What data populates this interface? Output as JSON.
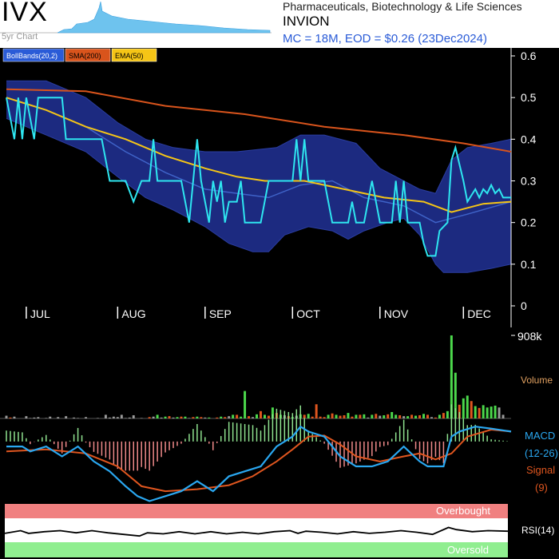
{
  "header": {
    "ticker": "IVX",
    "spark_label": "5yr Chart",
    "sector": "Pharmaceuticals, Biotechnology & Life Sciences",
    "company": "INVION",
    "market_info": "MC = 18M, EOD = $0.26 (23Dec2024)"
  },
  "colors": {
    "background": "#000000",
    "band_fill": "#1c2a80",
    "price": "#2ee6f0",
    "sma200": "#d9541c",
    "ema50": "#f5c516",
    "bb_mid": "#3f63c8",
    "macd": "#2aa7f0",
    "signal": "#e0561f",
    "vol_up": "#4cd94c",
    "vol_down": "#e0561f",
    "vol_flat": "#9a9a9a",
    "overbought": "#f08080",
    "oversold": "#90ee90"
  },
  "chart_data": [
    {
      "type": "line",
      "legend": [
        "BollBands(20,2)",
        "SMA(200)",
        "EMA(50)"
      ],
      "ylim": [
        0,
        0.6
      ],
      "yticks": [
        "0.6",
        "0.5",
        "0.4",
        "0.3",
        "0.2",
        "0.1",
        "0"
      ],
      "ytick_values": [
        0.6,
        0.5,
        0.4,
        0.3,
        0.2,
        0.1,
        0
      ],
      "months": [
        "JUL",
        "AUG",
        "SEP",
        "OCT",
        "NOV",
        "DEC"
      ],
      "month_start_index": [
        5,
        28,
        50,
        72,
        94,
        115
      ],
      "n_days": 128,
      "price_points": [
        [
          0,
          0.5
        ],
        [
          2,
          0.4
        ],
        [
          3,
          0.5
        ],
        [
          4,
          0.4
        ],
        [
          5,
          0.5
        ],
        [
          7,
          0.4
        ],
        [
          8,
          0.5
        ],
        [
          14,
          0.5
        ],
        [
          15,
          0.4
        ],
        [
          24,
          0.4
        ],
        [
          26,
          0.3
        ],
        [
          30,
          0.3
        ],
        [
          32,
          0.25
        ],
        [
          34,
          0.3
        ],
        [
          36,
          0.3
        ],
        [
          37,
          0.4
        ],
        [
          38,
          0.3
        ],
        [
          44,
          0.3
        ],
        [
          46,
          0.2
        ],
        [
          47,
          0.3
        ],
        [
          48,
          0.4
        ],
        [
          49,
          0.3
        ],
        [
          51,
          0.2
        ],
        [
          52,
          0.3
        ],
        [
          53,
          0.25
        ],
        [
          54,
          0.3
        ],
        [
          55,
          0.2
        ],
        [
          56,
          0.25
        ],
        [
          58,
          0.25
        ],
        [
          59,
          0.3
        ],
        [
          60,
          0.2
        ],
        [
          64,
          0.2
        ],
        [
          66,
          0.3
        ],
        [
          72,
          0.3
        ],
        [
          73,
          0.4
        ],
        [
          74,
          0.3
        ],
        [
          75,
          0.4
        ],
        [
          76,
          0.3
        ],
        [
          80,
          0.3
        ],
        [
          82,
          0.2
        ],
        [
          86,
          0.2
        ],
        [
          87,
          0.25
        ],
        [
          88,
          0.2
        ],
        [
          90,
          0.2
        ],
        [
          92,
          0.3
        ],
        [
          94,
          0.2
        ],
        [
          97,
          0.2
        ],
        [
          98,
          0.3
        ],
        [
          99,
          0.2
        ],
        [
          100,
          0.3
        ],
        [
          101,
          0.2
        ],
        [
          104,
          0.2
        ],
        [
          105,
          0.15
        ],
        [
          106,
          0.12
        ],
        [
          108,
          0.12
        ],
        [
          109,
          0.18
        ],
        [
          111,
          0.2
        ],
        [
          112,
          0.35
        ],
        [
          113,
          0.38
        ],
        [
          115,
          0.3
        ],
        [
          116,
          0.25
        ],
        [
          118,
          0.28
        ],
        [
          119,
          0.26
        ],
        [
          120,
          0.28
        ],
        [
          121,
          0.27
        ],
        [
          122,
          0.29
        ],
        [
          123,
          0.27
        ],
        [
          124,
          0.28
        ],
        [
          125,
          0.26
        ],
        [
          127,
          0.26
        ]
      ],
      "sma200": [
        [
          0,
          0.52
        ],
        [
          20,
          0.515
        ],
        [
          40,
          0.48
        ],
        [
          60,
          0.46
        ],
        [
          80,
          0.43
        ],
        [
          100,
          0.41
        ],
        [
          115,
          0.39
        ],
        [
          127,
          0.37
        ]
      ],
      "ema50": [
        [
          0,
          0.5
        ],
        [
          10,
          0.47
        ],
        [
          20,
          0.43
        ],
        [
          30,
          0.4
        ],
        [
          40,
          0.36
        ],
        [
          50,
          0.33
        ],
        [
          58,
          0.31
        ],
        [
          65,
          0.3
        ],
        [
          75,
          0.3
        ],
        [
          85,
          0.28
        ],
        [
          95,
          0.26
        ],
        [
          105,
          0.25
        ],
        [
          112,
          0.225
        ],
        [
          120,
          0.245
        ],
        [
          127,
          0.25
        ]
      ],
      "bb_upper": [
        [
          0,
          0.54
        ],
        [
          10,
          0.54
        ],
        [
          20,
          0.5
        ],
        [
          28,
          0.44
        ],
        [
          35,
          0.4
        ],
        [
          42,
          0.38
        ],
        [
          50,
          0.37
        ],
        [
          58,
          0.37
        ],
        [
          68,
          0.38
        ],
        [
          74,
          0.41
        ],
        [
          80,
          0.41
        ],
        [
          88,
          0.39
        ],
        [
          94,
          0.33
        ],
        [
          100,
          0.3
        ],
        [
          104,
          0.28
        ],
        [
          108,
          0.27
        ],
        [
          112,
          0.35
        ],
        [
          116,
          0.38
        ],
        [
          122,
          0.39
        ],
        [
          127,
          0.4
        ]
      ],
      "bb_lower": [
        [
          0,
          0.45
        ],
        [
          10,
          0.41
        ],
        [
          20,
          0.37
        ],
        [
          28,
          0.31
        ],
        [
          35,
          0.26
        ],
        [
          42,
          0.23
        ],
        [
          50,
          0.19
        ],
        [
          56,
          0.15
        ],
        [
          62,
          0.13
        ],
        [
          66,
          0.13
        ],
        [
          70,
          0.17
        ],
        [
          76,
          0.19
        ],
        [
          82,
          0.18
        ],
        [
          86,
          0.16
        ],
        [
          90,
          0.18
        ],
        [
          96,
          0.2
        ],
        [
          100,
          0.21
        ],
        [
          104,
          0.17
        ],
        [
          108,
          0.1
        ],
        [
          110,
          0.08
        ],
        [
          116,
          0.08
        ],
        [
          122,
          0.09
        ],
        [
          127,
          0.1
        ]
      ],
      "bb_mid": [
        [
          0,
          0.5
        ],
        [
          10,
          0.47
        ],
        [
          20,
          0.43
        ],
        [
          30,
          0.37
        ],
        [
          40,
          0.32
        ],
        [
          50,
          0.28
        ],
        [
          58,
          0.27
        ],
        [
          66,
          0.26
        ],
        [
          74,
          0.29
        ],
        [
          82,
          0.3
        ],
        [
          90,
          0.26
        ],
        [
          100,
          0.24
        ],
        [
          108,
          0.2
        ],
        [
          116,
          0.22
        ],
        [
          127,
          0.25
        ]
      ]
    },
    {
      "type": "bar",
      "ylabel": "Volume",
      "ymax_label": "908k",
      "ylim": [
        0,
        908
      ],
      "values": [
        30,
        10,
        20,
        0,
        0,
        25,
        5,
        10,
        15,
        0,
        5,
        20,
        0,
        15,
        0,
        25,
        0,
        10,
        5,
        0,
        15,
        0,
        0,
        5,
        0,
        40,
        10,
        20,
        15,
        40,
        5,
        10,
        35,
        0,
        5,
        0,
        15,
        20,
        40,
        10,
        20,
        25,
        10,
        15,
        20,
        20,
        5,
        15,
        20,
        15,
        10,
        10,
        0,
        10,
        20,
        15,
        25,
        40,
        40,
        20,
        300,
        25,
        15,
        45,
        80,
        40,
        30,
        120,
        60,
        40,
        35,
        25,
        15,
        30,
        45,
        40,
        50,
        20,
        155,
        20,
        15,
        40,
        55,
        40,
        30,
        35,
        60,
        20,
        40,
        40,
        45,
        10,
        40,
        50,
        30,
        35,
        45,
        70,
        40,
        35,
        25,
        25,
        40,
        30,
        35,
        50,
        40,
        15,
        10,
        40,
        60,
        80,
        908,
        500,
        150,
        220,
        250,
        190,
        135,
        115,
        145,
        120,
        130,
        140,
        120,
        40
      ],
      "direction": [
        0,
        -1,
        0,
        0,
        0,
        0,
        0,
        0,
        0,
        0,
        0,
        0,
        0,
        0,
        0,
        0,
        0,
        0,
        0,
        0,
        0,
        0,
        0,
        0,
        0,
        0,
        0,
        0,
        0,
        0,
        0,
        0,
        0,
        0,
        0,
        0,
        -1,
        0,
        1,
        0,
        1,
        -1,
        0,
        1,
        -1,
        1,
        0,
        -1,
        1,
        -1,
        0,
        1,
        0,
        -1,
        1,
        -1,
        0,
        1,
        -1,
        1,
        1,
        -1,
        0,
        1,
        -1,
        1,
        -1,
        1,
        -1,
        1,
        0,
        -1,
        1,
        0,
        1,
        -1,
        1,
        -1,
        -1,
        -1,
        -1,
        1,
        -1,
        1,
        -1,
        -1,
        1,
        -1,
        1,
        -1,
        1,
        0,
        1,
        -1,
        0,
        1,
        -1,
        1,
        1,
        -1,
        0,
        1,
        -1,
        1,
        -1,
        1,
        -1,
        0,
        -1,
        1,
        -1,
        1,
        1,
        1,
        -1,
        1,
        1,
        -1,
        1,
        -1,
        1,
        1,
        1,
        1
      ]
    },
    {
      "type": "line",
      "title": "MACD",
      "series_names": [
        "MACD",
        "Signal"
      ],
      "labels": [
        "MACD",
        "(12-26)",
        "Signal",
        "(9)"
      ],
      "macd": [
        [
          0,
          -0.005
        ],
        [
          4,
          -0.005
        ],
        [
          6,
          -0.01
        ],
        [
          10,
          -0.005
        ],
        [
          14,
          -0.015
        ],
        [
          18,
          -0.005
        ],
        [
          22,
          -0.02
        ],
        [
          26,
          -0.03
        ],
        [
          30,
          -0.045
        ],
        [
          33,
          -0.055
        ],
        [
          36,
          -0.06
        ],
        [
          40,
          -0.055
        ],
        [
          44,
          -0.05
        ],
        [
          48,
          -0.04
        ],
        [
          52,
          -0.05
        ],
        [
          56,
          -0.035
        ],
        [
          60,
          -0.03
        ],
        [
          64,
          -0.025
        ],
        [
          68,
          -0.005
        ],
        [
          72,
          0.005
        ],
        [
          74,
          0.015
        ],
        [
          76,
          0.01
        ],
        [
          80,
          0.005
        ],
        [
          84,
          -0.015
        ],
        [
          88,
          -0.025
        ],
        [
          92,
          -0.025
        ],
        [
          96,
          -0.02
        ],
        [
          100,
          -0.005
        ],
        [
          104,
          -0.02
        ],
        [
          106,
          -0.025
        ],
        [
          110,
          -0.025
        ],
        [
          112,
          0.005
        ],
        [
          114,
          0.01
        ],
        [
          118,
          0.015
        ],
        [
          122,
          0.013
        ],
        [
          127,
          0.01
        ]
      ],
      "signal": [
        [
          0,
          -0.01
        ],
        [
          10,
          -0.008
        ],
        [
          20,
          -0.012
        ],
        [
          28,
          -0.025
        ],
        [
          34,
          -0.045
        ],
        [
          40,
          -0.05
        ],
        [
          48,
          -0.048
        ],
        [
          56,
          -0.044
        ],
        [
          62,
          -0.035
        ],
        [
          68,
          -0.02
        ],
        [
          72,
          -0.008
        ],
        [
          76,
          0.005
        ],
        [
          80,
          0.006
        ],
        [
          84,
          -0.003
        ],
        [
          88,
          -0.015
        ],
        [
          94,
          -0.02
        ],
        [
          100,
          -0.015
        ],
        [
          104,
          -0.012
        ],
        [
          108,
          -0.018
        ],
        [
          112,
          -0.012
        ],
        [
          116,
          0.005
        ],
        [
          122,
          0.012
        ],
        [
          127,
          0.01
        ]
      ],
      "ylim": [
        -0.062,
        0.02
      ]
    },
    {
      "type": "line",
      "title": "RSI(14)",
      "zones": [
        "Overbought",
        "Oversold"
      ],
      "ylim": [
        0,
        100
      ],
      "rsi": [
        [
          0,
          45
        ],
        [
          4,
          50
        ],
        [
          6,
          45
        ],
        [
          10,
          48
        ],
        [
          14,
          50
        ],
        [
          18,
          46
        ],
        [
          22,
          50
        ],
        [
          26,
          46
        ],
        [
          30,
          43
        ],
        [
          34,
          40
        ],
        [
          36,
          46
        ],
        [
          40,
          44
        ],
        [
          44,
          48
        ],
        [
          48,
          44
        ],
        [
          52,
          48
        ],
        [
          56,
          44
        ],
        [
          60,
          47
        ],
        [
          64,
          44
        ],
        [
          68,
          48
        ],
        [
          72,
          50
        ],
        [
          74,
          45
        ],
        [
          76,
          49
        ],
        [
          80,
          47
        ],
        [
          84,
          44
        ],
        [
          88,
          48
        ],
        [
          92,
          45
        ],
        [
          96,
          47
        ],
        [
          100,
          50
        ],
        [
          104,
          47
        ],
        [
          108,
          43
        ],
        [
          112,
          56
        ],
        [
          114,
          52
        ],
        [
          118,
          48
        ],
        [
          122,
          50
        ],
        [
          127,
          49
        ]
      ]
    }
  ]
}
